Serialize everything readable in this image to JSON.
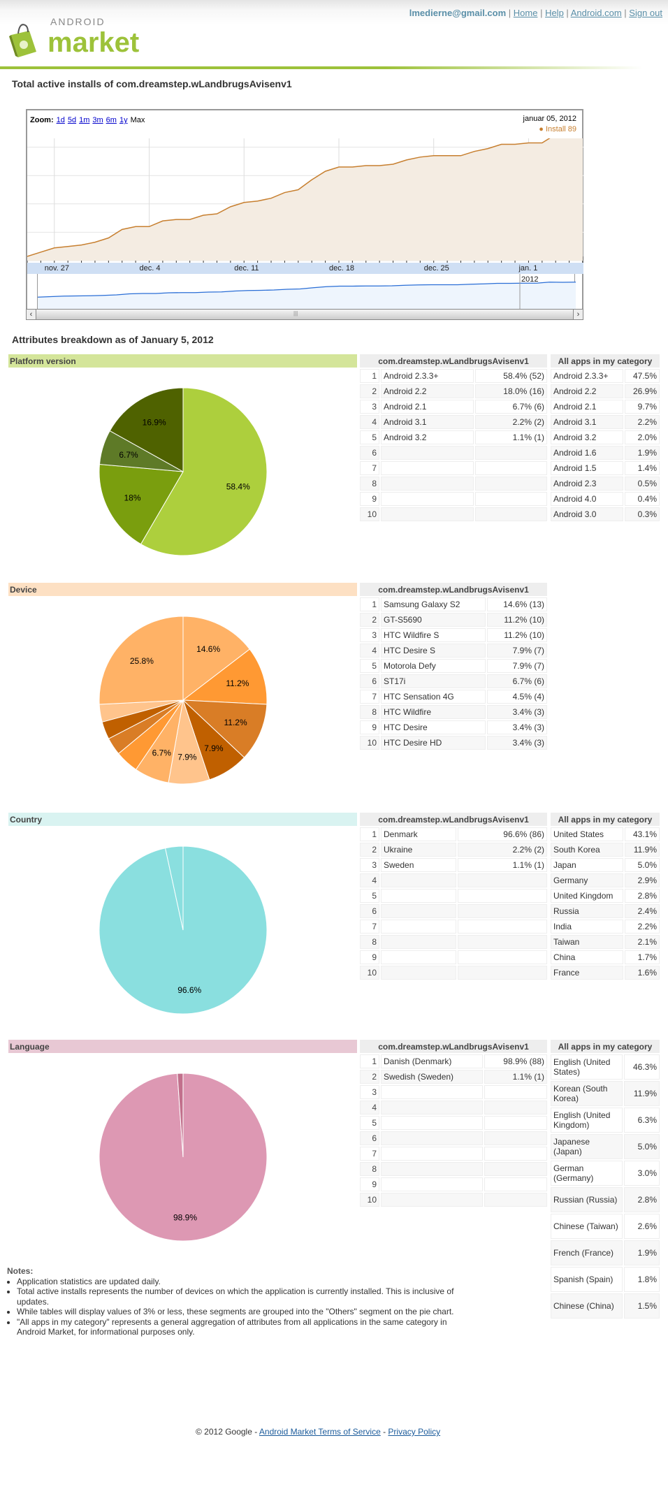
{
  "header": {
    "email": "lmedierne@gmail.com",
    "links": [
      "Home",
      "Help",
      "Android.com",
      "Sign out"
    ],
    "logo_text_top": "ANDROID",
    "logo_text": "market",
    "brand_color": "#9dc23a"
  },
  "page_title": "Total active installs of com.dreamstep.wLandbrugsAvisenv1",
  "install_chart": {
    "zoom_label": "Zoom:",
    "zoom_options": [
      "1d",
      "5d",
      "1m",
      "3m",
      "6m",
      "1y"
    ],
    "zoom_selected": "Max",
    "date": "januar 05, 2012",
    "legend": "Install 89",
    "navigator_label": "2012",
    "chart_data": {
      "type": "area",
      "x_start": "2011-11-25",
      "x_end": "2012-01-05",
      "x_tick_labels": [
        "nov. 27",
        "dec. 4",
        "dec. 11",
        "dec. 18",
        "dec. 25",
        "jan. 1"
      ],
      "y_ticks": [
        0,
        20,
        40,
        60,
        80,
        100
      ],
      "ylim": [
        0,
        100
      ],
      "grid": true,
      "series": [
        {
          "name": "Install",
          "color": "#c77f2f",
          "values": [
            3,
            6,
            9,
            10,
            11,
            13,
            16,
            22,
            24,
            24,
            28,
            29,
            29,
            32,
            33,
            38,
            41,
            42,
            44,
            48,
            50,
            57,
            63,
            66,
            66,
            67,
            67,
            68,
            71,
            73,
            74,
            74,
            74,
            77,
            79,
            82,
            82,
            83,
            83,
            89,
            88,
            89
          ]
        }
      ]
    }
  },
  "attributes_title": "Attributes breakdown as of January 5, 2012",
  "app_col_header": "com.dreamstep.wLandbrugsAvisenv1",
  "category_col_header": "All apps in my category",
  "sections": {
    "platform": {
      "title": "Platform version",
      "color": "#d4e59a",
      "rows": [
        [
          "Android 2.3.3+",
          "58.4% (52)"
        ],
        [
          "Android 2.2",
          "18.0% (16)"
        ],
        [
          "Android 2.1",
          "6.7% (6)"
        ],
        [
          "Android 3.1",
          "2.2% (2)"
        ],
        [
          "Android 3.2",
          "1.1% (1)"
        ],
        [
          "",
          ""
        ],
        [
          "",
          ""
        ],
        [
          "",
          ""
        ],
        [
          "",
          ""
        ],
        [
          "",
          ""
        ]
      ],
      "category": [
        [
          "Android 2.3.3+",
          "47.5%"
        ],
        [
          "Android 2.2",
          "26.9%"
        ],
        [
          "Android 2.1",
          "9.7%"
        ],
        [
          "Android 3.1",
          "2.2%"
        ],
        [
          "Android 3.2",
          "2.0%"
        ],
        [
          "Android 1.6",
          "1.9%"
        ],
        [
          "Android 1.5",
          "1.4%"
        ],
        [
          "Android 2.3",
          "0.5%"
        ],
        [
          "Android 4.0",
          "0.4%"
        ],
        [
          "Android 3.0",
          "0.3%"
        ]
      ],
      "chart_data": {
        "type": "pie",
        "slices": [
          {
            "value": 58.4,
            "label": "58.4%",
            "color": "#adcf3d"
          },
          {
            "value": 18.0,
            "label": "18%",
            "color": "#7a9e0e"
          },
          {
            "value": 6.7,
            "label": "6.7%",
            "color": "#5e7a27"
          },
          {
            "value": 16.9,
            "label": "16.9%",
            "color": "#4f6200"
          }
        ]
      }
    },
    "device": {
      "title": "Device",
      "color": "#fde0c3",
      "rows": [
        [
          "Samsung Galaxy S2",
          "14.6% (13)"
        ],
        [
          "GT-S5690",
          "11.2% (10)"
        ],
        [
          "HTC Wildfire S",
          "11.2% (10)"
        ],
        [
          "HTC Desire S",
          "7.9% (7)"
        ],
        [
          "Motorola Defy",
          "7.9% (7)"
        ],
        [
          "ST17i",
          "6.7% (6)"
        ],
        [
          "HTC Sensation 4G",
          "4.5% (4)"
        ],
        [
          "HTC Wildfire",
          "3.4% (3)"
        ],
        [
          "HTC Desire",
          "3.4% (3)"
        ],
        [
          "HTC Desire HD",
          "3.4% (3)"
        ]
      ],
      "chart_data": {
        "type": "pie",
        "slices": [
          {
            "value": 14.6,
            "label": "14.6%",
            "color": "#ffb266"
          },
          {
            "value": 11.2,
            "label": "11.2%",
            "color": "#ff9933"
          },
          {
            "value": 11.2,
            "label": "11.2%",
            "color": "#d97d26"
          },
          {
            "value": 7.9,
            "label": "7.9%",
            "color": "#c06000"
          },
          {
            "value": 7.9,
            "label": "7.9%",
            "color": "#ffc48c"
          },
          {
            "value": 6.7,
            "label": "6.7%",
            "color": "#ffb266"
          },
          {
            "value": 4.5,
            "label": "",
            "color": "#ff9933"
          },
          {
            "value": 3.4,
            "label": "",
            "color": "#d97d26"
          },
          {
            "value": 3.4,
            "label": "",
            "color": "#c06000"
          },
          {
            "value": 3.4,
            "label": "",
            "color": "#ffc48c"
          },
          {
            "value": 25.8,
            "label": "25.8%",
            "color": "#ffb266"
          }
        ]
      }
    },
    "country": {
      "title": "Country",
      "color": "#d9f3f1",
      "rows": [
        [
          "Denmark",
          "96.6% (86)"
        ],
        [
          "Ukraine",
          "2.2% (2)"
        ],
        [
          "Sweden",
          "1.1% (1)"
        ],
        [
          "",
          ""
        ],
        [
          "",
          ""
        ],
        [
          "",
          ""
        ],
        [
          "",
          ""
        ],
        [
          "",
          ""
        ],
        [
          "",
          ""
        ],
        [
          "",
          ""
        ]
      ],
      "category": [
        [
          "United States",
          "43.1%"
        ],
        [
          "South Korea",
          "11.9%"
        ],
        [
          "Japan",
          "5.0%"
        ],
        [
          "Germany",
          "2.9%"
        ],
        [
          "United Kingdom",
          "2.8%"
        ],
        [
          "Russia",
          "2.4%"
        ],
        [
          "India",
          "2.2%"
        ],
        [
          "Taiwan",
          "2.1%"
        ],
        [
          "China",
          "1.7%"
        ],
        [
          "France",
          "1.6%"
        ]
      ],
      "chart_data": {
        "type": "pie",
        "slices": [
          {
            "value": 96.6,
            "label": "96.6%",
            "color": "#8adfdf"
          },
          {
            "value": 3.4,
            "label": "",
            "color": "#8adfdf"
          }
        ]
      }
    },
    "language": {
      "title": "Language",
      "color": "#e8c8d4",
      "rows": [
        [
          "Danish (Denmark)",
          "98.9% (88)"
        ],
        [
          "Swedish (Sweden)",
          "1.1% (1)"
        ],
        [
          "",
          ""
        ],
        [
          "",
          ""
        ],
        [
          "",
          ""
        ],
        [
          "",
          ""
        ],
        [
          "",
          ""
        ],
        [
          "",
          ""
        ],
        [
          "",
          ""
        ],
        [
          "",
          ""
        ]
      ],
      "category": [
        [
          "English (United States)",
          "46.3%"
        ],
        [
          "Korean (South Korea)",
          "11.9%"
        ],
        [
          "English (United Kingdom)",
          "6.3%"
        ],
        [
          "Japanese (Japan)",
          "5.0%"
        ],
        [
          "German (Germany)",
          "3.0%"
        ],
        [
          "Russian (Russia)",
          "2.8%"
        ],
        [
          "Chinese (Taiwan)",
          "2.6%"
        ],
        [
          "French (France)",
          "1.9%"
        ],
        [
          "Spanish (Spain)",
          "1.8%"
        ],
        [
          "Chinese (China)",
          "1.5%"
        ]
      ],
      "chart_data": {
        "type": "pie",
        "slices": [
          {
            "value": 98.9,
            "label": "98.9%",
            "color": "#dd98b3"
          },
          {
            "value": 1.1,
            "label": "",
            "color": "#c2708c"
          }
        ]
      }
    }
  },
  "notes": {
    "title": "Notes:",
    "items": [
      "Application statistics are updated daily.",
      "Total active installs represents the number of devices on which the application is currently installed. This is inclusive of updates.",
      "While tables will display values of 3% or less, these segments are grouped into the \"Others\" segment on the pie chart.",
      "\"All apps in my category\" represents a general aggregation of attributes from all applications in the same category in Android Market, for informational purposes only."
    ]
  },
  "footer": {
    "copyright": "© 2012 Google - ",
    "separator": " - ",
    "terms": "Android Market Terms of Service",
    "privacy": "Privacy Policy"
  }
}
